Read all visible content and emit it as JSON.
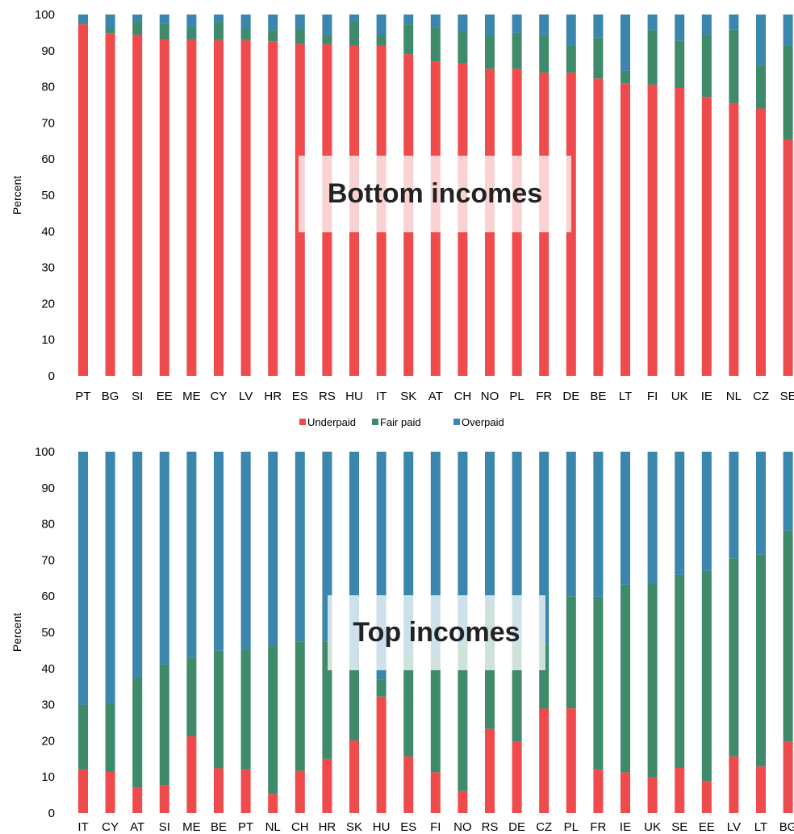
{
  "colors": {
    "underpaid": "#ef4b4d",
    "fair": "#3e8a6a",
    "overpaid": "#3b86ad"
  },
  "legend": {
    "items": [
      "Underpaid",
      "Fair paid",
      "Overpaid"
    ]
  },
  "chart_data": [
    {
      "type": "bar",
      "stacked": true,
      "title": "Bottom incomes",
      "ylabel": "Percent",
      "ylim": [
        0,
        100
      ],
      "yticks": [
        0,
        10,
        20,
        30,
        40,
        50,
        60,
        70,
        80,
        90,
        100
      ],
      "categories": [
        "PT",
        "BG",
        "SI",
        "EE",
        "ME",
        "CY",
        "LV",
        "HR",
        "ES",
        "RS",
        "HU",
        "IT",
        "SK",
        "AT",
        "CH",
        "NO",
        "PL",
        "FR",
        "DE",
        "BE",
        "LT",
        "FI",
        "UK",
        "IE",
        "NL",
        "CZ",
        "SE"
      ],
      "series": [
        {
          "name": "Underpaid",
          "values": [
            97.3,
            94.8,
            94.4,
            93.2,
            93.0,
            92.9,
            92.9,
            92.6,
            91.8,
            91.8,
            91.4,
            91.4,
            89.0,
            87.0,
            86.6,
            85.0,
            85.0,
            83.9,
            83.9,
            82.3,
            81.0,
            80.6,
            79.8,
            77.2,
            75.3,
            74.0,
            65.4
          ]
        },
        {
          "name": "Fair paid",
          "values": [
            0.4,
            1.3,
            3.6,
            4.2,
            3.3,
            5.0,
            3.2,
            3.1,
            4.3,
            2.6,
            6.8,
            2.9,
            8.3,
            9.4,
            8.6,
            9.2,
            9.9,
            10.2,
            7.4,
            11.3,
            3.4,
            15.3,
            13.0,
            17.2,
            20.5,
            11.8,
            25.9
          ]
        },
        {
          "name": "Overpaid",
          "values": [
            2.3,
            3.9,
            2.0,
            2.6,
            3.7,
            2.1,
            3.9,
            4.3,
            3.9,
            5.6,
            1.8,
            5.7,
            2.7,
            3.6,
            4.8,
            5.8,
            5.1,
            5.9,
            8.7,
            6.4,
            15.6,
            4.1,
            7.2,
            5.6,
            4.2,
            14.2,
            8.7
          ]
        }
      ]
    },
    {
      "type": "bar",
      "stacked": true,
      "title": "Top incomes",
      "ylabel": "Percent",
      "ylim": [
        0,
        100
      ],
      "yticks": [
        0,
        10,
        20,
        30,
        40,
        50,
        60,
        70,
        80,
        90,
        100
      ],
      "categories": [
        "IT",
        "CY",
        "AT",
        "SI",
        "ME",
        "BE",
        "PT",
        "NL",
        "CH",
        "HR",
        "SK",
        "HU",
        "ES",
        "FI",
        "NO",
        "RS",
        "DE",
        "CZ",
        "PL",
        "FR",
        "IE",
        "UK",
        "SE",
        "EE",
        "LV",
        "LT",
        "BG"
      ],
      "series": [
        {
          "name": "Underpaid",
          "values": [
            12.0,
            11.4,
            7.0,
            7.8,
            21.3,
            12.4,
            12.0,
            5.3,
            11.7,
            15.0,
            20.1,
            32.2,
            15.7,
            11.3,
            6.1,
            23.3,
            19.7,
            28.9,
            29.0,
            12.0,
            11.3,
            9.8,
            12.5,
            8.9,
            15.7,
            12.9,
            19.7
          ]
        },
        {
          "name": "Fair paid",
          "values": [
            18.0,
            19.1,
            30.6,
            33.3,
            21.6,
            32.5,
            33.3,
            40.9,
            35.8,
            32.4,
            19.9,
            4.8,
            27.8,
            31.9,
            40.2,
            34.2,
            27.0,
            17.8,
            31.0,
            47.9,
            51.9,
            53.7,
            53.4,
            58.1,
            54.8,
            58.6,
            58.5
          ]
        },
        {
          "name": "Overpaid",
          "values": [
            70.0,
            69.5,
            62.4,
            58.9,
            57.1,
            55.1,
            54.7,
            53.8,
            52.5,
            52.6,
            60.0,
            63.0,
            56.5,
            56.8,
            53.7,
            42.5,
            53.3,
            53.3,
            40.0,
            40.1,
            36.8,
            36.5,
            34.1,
            33.0,
            29.5,
            28.5,
            21.8
          ]
        }
      ]
    }
  ]
}
